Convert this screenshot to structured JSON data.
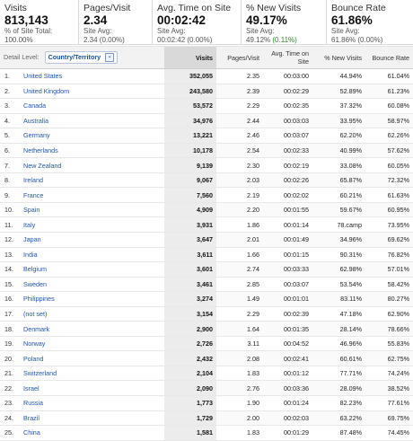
{
  "scorecards": [
    {
      "label": "Visits",
      "value": "813,143",
      "sub1": "% of Site Total:",
      "sub2": "100.00%"
    },
    {
      "label": "Pages/Visit",
      "value": "2.34",
      "sub1": "Site Avg:",
      "sub2": "2.34 (0.00%)"
    },
    {
      "label": "Avg. Time on Site",
      "value": "00:02:42",
      "sub1": "Site Avg:",
      "sub2": "00:02:42 (0.00%)"
    },
    {
      "label": "% New Visits",
      "value": "49.17%",
      "sub1": "Site Avg:",
      "sub2": "49.12%",
      "sub2_delta": "(0.11%)"
    },
    {
      "label": "Bounce Rate",
      "value": "61.86%",
      "sub1": "Site Avg:",
      "sub2": "61.86% (0.00%)"
    }
  ],
  "table": {
    "dimension_label": "Detail Level:",
    "dimension_value": "Country/Territory",
    "dimension_chevron": "⌄",
    "columns": [
      "Visits",
      "Pages/Visit",
      "Avg. Time on Site",
      "% New Visits",
      "Bounce Rate"
    ],
    "rows": [
      [
        "1.",
        "United States",
        "352,055",
        "2.35",
        "00:03:00",
        "44.94%",
        "61.04%"
      ],
      [
        "2.",
        "United Kingdom",
        "243,580",
        "2.39",
        "00:02:29",
        "52.89%",
        "61.23%"
      ],
      [
        "3.",
        "Canada",
        "53,572",
        "2.29",
        "00:02:35",
        "37.32%",
        "60.08%"
      ],
      [
        "4.",
        "Australia",
        "34,976",
        "2.44",
        "00:03:03",
        "33.95%",
        "58.97%"
      ],
      [
        "5.",
        "Germany",
        "13,221",
        "2.46",
        "00:03:07",
        "62.20%",
        "62.26%"
      ],
      [
        "6.",
        "Netherlands",
        "10,178",
        "2.54",
        "00:02:33",
        "40.99%",
        "57.62%"
      ],
      [
        "7.",
        "New Zealand",
        "9,139",
        "2.30",
        "00:02:19",
        "33.08%",
        "60.05%"
      ],
      [
        "8.",
        "Ireland",
        "9,067",
        "2.03",
        "00:02:26",
        "65.87%",
        "72.32%"
      ],
      [
        "9.",
        "France",
        "7,560",
        "2.19",
        "00:02:02",
        "60.21%",
        "61.63%"
      ],
      [
        "10.",
        "Spain",
        "4,909",
        "2.20",
        "00:01:55",
        "59.67%",
        "60.95%"
      ],
      [
        "11.",
        "Italy",
        "3,931",
        "1.86",
        "00:01:14",
        "78.camp",
        "73.95%"
      ],
      [
        "12.",
        "Japan",
        "3,647",
        "2.01",
        "00:01:49",
        "34.96%",
        "69.62%"
      ],
      [
        "13.",
        "India",
        "3,611",
        "1.66",
        "00:01:15",
        "90.31%",
        "76.82%"
      ],
      [
        "14.",
        "Belgium",
        "3,601",
        "2.74",
        "00:03:33",
        "62.98%",
        "57.01%"
      ],
      [
        "15.",
        "Sweden",
        "3,461",
        "2.85",
        "00:03:07",
        "53.54%",
        "58.42%"
      ],
      [
        "16.",
        "Philippines",
        "3,274",
        "1.49",
        "00:01:01",
        "83.11%",
        "80.27%"
      ],
      [
        "17.",
        "(not set)",
        "3,154",
        "2.29",
        "00:02:39",
        "47.18%",
        "62.90%"
      ],
      [
        "18.",
        "Denmark",
        "2,900",
        "1.64",
        "00:01:35",
        "28.14%",
        "78.66%"
      ],
      [
        "19.",
        "Norway",
        "2,726",
        "3.11",
        "00:04:52",
        "46.96%",
        "55.83%"
      ],
      [
        "20.",
        "Poland",
        "2,432",
        "2.08",
        "00:02:41",
        "60.61%",
        "62.75%"
      ],
      [
        "21.",
        "Switzerland",
        "2,104",
        "1.83",
        "00:01:12",
        "77.71%",
        "74.24%"
      ],
      [
        "22.",
        "Israel",
        "2,090",
        "2.76",
        "00:03:36",
        "28.09%",
        "38.52%"
      ],
      [
        "23.",
        "Russia",
        "1,773",
        "1.90",
        "00:01:24",
        "82.23%",
        "77.61%"
      ],
      [
        "24.",
        "Brazil",
        "1,729",
        "2.00",
        "00:02:03",
        "63.22%",
        "69.75%"
      ],
      [
        "25.",
        "China",
        "1,581",
        "1.83",
        "00:01:29",
        "87.48%",
        "74.45%"
      ]
    ]
  }
}
